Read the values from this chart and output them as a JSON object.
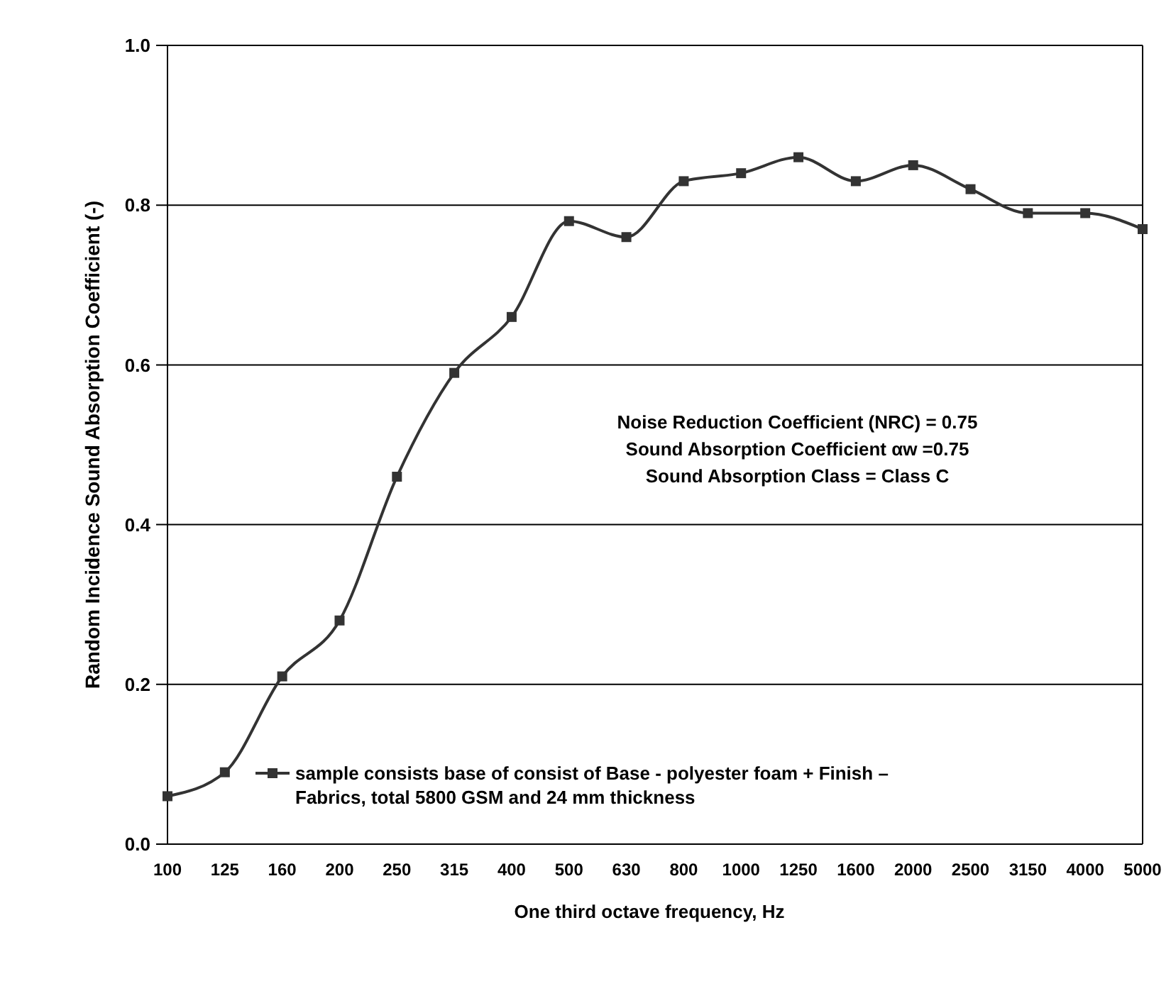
{
  "chart_data": {
    "type": "line",
    "xlabel": "One third octave frequency, Hz",
    "ylabel": "Random Incidence Sound Absorption Coefficient (-)",
    "categories": [
      "100",
      "125",
      "160",
      "200",
      "250",
      "315",
      "400",
      "500",
      "630",
      "800",
      "1000",
      "1250",
      "1600",
      "2000",
      "2500",
      "3150",
      "4000",
      "5000"
    ],
    "series": [
      {
        "name": "sample consists base of consist of Base - polyester foam + Finish – Fabrics, total 5800 GSM and 24 mm thickness",
        "color": "#333333",
        "values": [
          0.06,
          0.09,
          0.21,
          0.28,
          0.46,
          0.59,
          0.66,
          0.78,
          0.76,
          0.83,
          0.84,
          0.86,
          0.83,
          0.85,
          0.82,
          0.79,
          0.79,
          0.77
        ]
      }
    ],
    "ylim": [
      0,
      1
    ],
    "yticks": [
      {
        "value": 0,
        "label": "0.0"
      },
      0.2,
      0.4,
      0.6,
      0.8,
      {
        "value": 1,
        "label": "1.0"
      }
    ],
    "grid": "y",
    "legend": "bottom left",
    "marker": "square",
    "line_style": "solid",
    "annotations": [
      "Noise Reduction Coefficient (NRC) = 0.75",
      "Sound Absorption Coefficient αw =0.75",
      "Sound Absorption Class = Class C"
    ]
  }
}
